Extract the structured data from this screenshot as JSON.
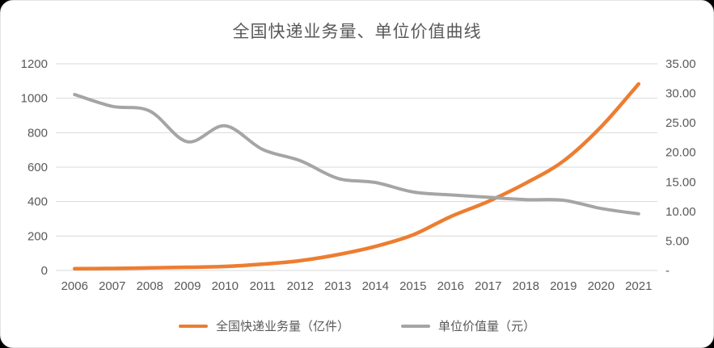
{
  "page": {
    "background_color": "#000000",
    "card_color": "#ffffff"
  },
  "chart_data": {
    "type": "line",
    "title": "全国快递业务量、单位价值曲线",
    "categories": [
      "2006",
      "2007",
      "2008",
      "2009",
      "2010",
      "2011",
      "2012",
      "2013",
      "2014",
      "2015",
      "2016",
      "2017",
      "2018",
      "2019",
      "2020",
      "2021"
    ],
    "series": [
      {
        "name": "全国快递业务量（亿件）",
        "axis": "left",
        "color": "#ED7D31",
        "stroke_width": 4.5,
        "values": [
          10.6,
          12.0,
          15.1,
          18.6,
          23.4,
          36.7,
          56.9,
          91.9,
          139.6,
          206.7,
          312.8,
          400.6,
          507.1,
          635.2,
          833.6,
          1083.0
        ]
      },
      {
        "name": "单位价值量（元）",
        "axis": "right",
        "color": "#A5A5A5",
        "stroke_width": 4,
        "values": [
          29.8,
          27.8,
          27.0,
          21.8,
          24.5,
          20.5,
          18.6,
          15.6,
          14.9,
          13.3,
          12.8,
          12.4,
          12.0,
          11.9,
          10.5,
          9.6
        ]
      }
    ],
    "left_axis": {
      "min": 0,
      "max": 1200,
      "step": 200,
      "tick_labels": [
        "0",
        "200",
        "400",
        "600",
        "800",
        "1000",
        "1200"
      ]
    },
    "right_axis": {
      "min": 0,
      "max": 35,
      "step": 5,
      "tick_labels": [
        "-",
        "5.00",
        "10.00",
        "15.00",
        "20.00",
        "25.00",
        "30.00",
        "35.00"
      ]
    },
    "grid": true,
    "grid_color": "#D9D9D9",
    "axis_text_color": "#595959",
    "legend_position": "bottom"
  }
}
